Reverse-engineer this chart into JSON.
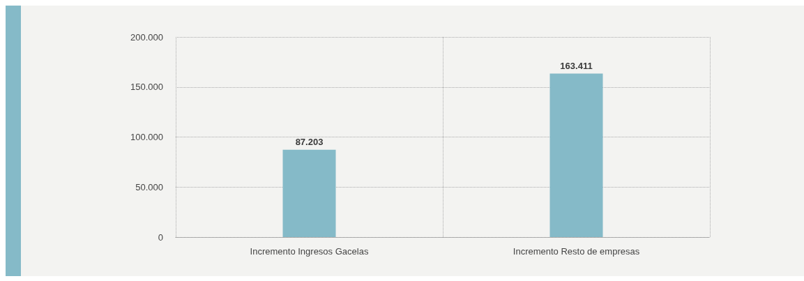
{
  "chart_data": {
    "type": "bar",
    "categories": [
      "Incremento Ingresos Gacelas",
      "Incremento Resto de empresas"
    ],
    "values": [
      87203,
      163411
    ],
    "color": "#85bac8",
    "value_labels": [
      "87.203",
      "163.411"
    ],
    "ylim": [
      0,
      200000
    ],
    "yticks": [
      {
        "value": 0,
        "label": "0"
      },
      {
        "value": 50000,
        "label": "50.000"
      },
      {
        "value": 100000,
        "label": "100.000"
      },
      {
        "value": 150000,
        "label": "150.000"
      },
      {
        "value": 200000,
        "label": "200.000"
      }
    ],
    "grid": true
  }
}
